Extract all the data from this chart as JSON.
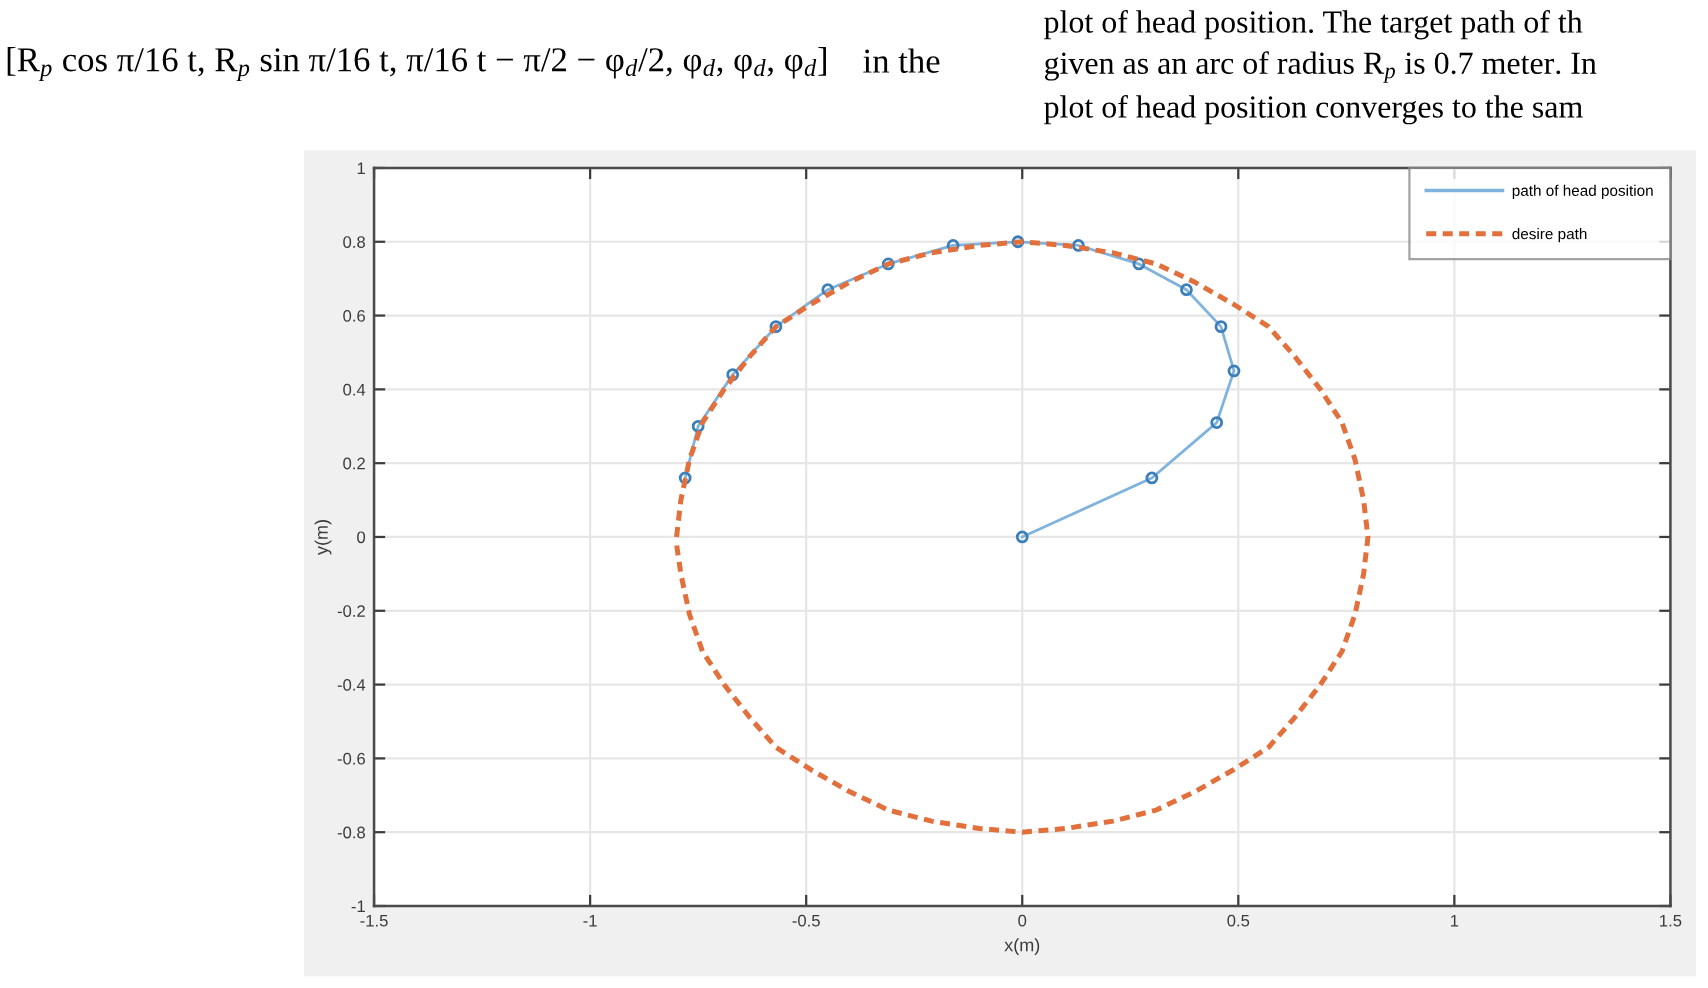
{
  "chart_data": {
    "type": "line",
    "xlabel": "x(m)",
    "ylabel": "y(m)",
    "xlim": [
      -1.5,
      1.5
    ],
    "xticks": [
      -1.5,
      -1,
      -0.5,
      0,
      0.5,
      1,
      1.5
    ],
    "ylim": [
      -1,
      1
    ],
    "yticks": [
      -1,
      -0.8,
      -0.6,
      -0.4,
      -0.2,
      0,
      0.2,
      0.4,
      0.6,
      0.8,
      1
    ],
    "grid": true,
    "legend": "top right",
    "annotations": [
      "[R$_{p}$ cos π/16 t, R$_{p}$ sin π/16 t, π/16 t − π/2 − φ$_{d}$/2, φ$_{d}$, φ$_{d}$, φ$_{d}$]",
      "in the",
      "plot of head position. The target path of th",
      "given as an arc of radius R$_{p}$ is 0.7 meter. In",
      "plot of head position converges to the sam"
    ],
    "series": [
      {
        "name": "path of head position",
        "color": "#7fb2dc",
        "line_style": "solid",
        "marker": "circle",
        "x": [
          0,
          0.3,
          0.45,
          0.49,
          0.46,
          0.38,
          0.27,
          0.13,
          -0.01,
          -0.16,
          -0.31,
          -0.45,
          -0.57,
          -0.67,
          -0.75,
          -0.78
        ],
        "values": [
          0,
          0.16,
          0.31,
          0.45,
          0.57,
          0.67,
          0.74,
          0.79,
          0.8,
          0.79,
          0.74,
          0.67,
          0.57,
          0.44,
          0.3,
          0.16
        ]
      },
      {
        "name": "desire path",
        "color": "#e2703c",
        "line_style": "dashed",
        "marker": "none",
        "x": [
          -0.8,
          -0.79,
          -0.77,
          -0.74,
          -0.69,
          -0.63,
          -0.57,
          -0.49,
          -0.4,
          -0.31,
          -0.21,
          -0.1,
          0,
          0.1,
          0.21,
          0.31,
          0.4,
          0.49,
          0.57,
          0.63,
          0.69,
          0.74,
          0.77,
          0.79,
          0.8,
          0.79,
          0.77,
          0.74,
          0.69,
          0.63,
          0.57,
          0.49,
          0.4,
          0.31,
          0.21,
          0.1,
          0,
          -0.1,
          -0.21,
          -0.31,
          -0.4,
          -0.49,
          -0.57,
          -0.63,
          -0.69,
          -0.74,
          -0.77,
          -0.79,
          -0.8
        ],
        "values": [
          0,
          0.1,
          0.21,
          0.31,
          0.4,
          0.49,
          0.57,
          0.63,
          0.69,
          0.74,
          0.77,
          0.79,
          0.8,
          0.79,
          0.77,
          0.74,
          0.69,
          0.63,
          0.57,
          0.49,
          0.4,
          0.31,
          0.21,
          0.1,
          0,
          -0.1,
          -0.21,
          -0.31,
          -0.4,
          -0.49,
          -0.57,
          -0.63,
          -0.69,
          -0.74,
          -0.77,
          -0.79,
          -0.8,
          -0.79,
          -0.77,
          -0.74,
          -0.69,
          -0.63,
          -0.57,
          -0.49,
          -0.4,
          -0.31,
          -0.21,
          -0.1,
          -0.02
        ]
      }
    ]
  }
}
